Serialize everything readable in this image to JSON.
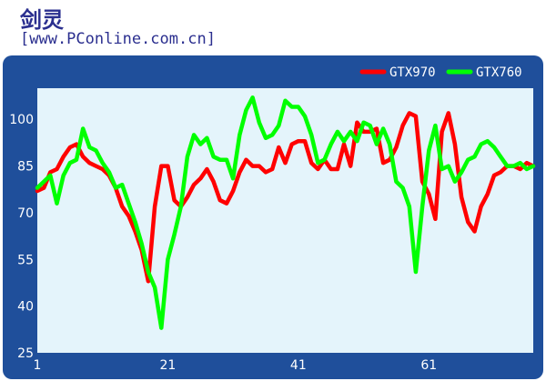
{
  "header": {
    "title": "剑灵",
    "source": "[www.PConline.com.cn]"
  },
  "chart_data": {
    "type": "line",
    "title": "",
    "xlabel": "",
    "ylabel": "",
    "xlim": [
      1,
      77
    ],
    "ylim": [
      25,
      110
    ],
    "yticks": [
      25,
      40,
      55,
      70,
      85,
      100
    ],
    "xticks": [
      1,
      21,
      41,
      61
    ],
    "grid": false,
    "legend": "top-right",
    "series": [
      {
        "name": "GTX970",
        "color": "#ff0000",
        "x": [
          1,
          2,
          3,
          4,
          5,
          6,
          7,
          8,
          9,
          10,
          11,
          12,
          13,
          14,
          15,
          16,
          17,
          18,
          19,
          20,
          21,
          22,
          23,
          24,
          25,
          26,
          27,
          28,
          29,
          30,
          31,
          32,
          33,
          34,
          35,
          36,
          37,
          38,
          39,
          40,
          41,
          42,
          43,
          44,
          45,
          46,
          47,
          48,
          49,
          50,
          51,
          52,
          53,
          54,
          55,
          56,
          57,
          58,
          59,
          60,
          61,
          62,
          63,
          64,
          65,
          66,
          67,
          68,
          69,
          70,
          71,
          72,
          73,
          74,
          75,
          76,
          77
        ],
        "values": [
          77,
          78,
          83,
          84,
          88,
          91,
          92,
          88,
          86,
          85,
          84,
          82,
          78,
          72,
          69,
          64,
          58,
          48,
          72,
          85,
          85,
          74,
          72,
          75,
          79,
          81,
          84,
          80,
          74,
          73,
          77,
          83,
          87,
          85,
          85,
          83,
          84,
          91,
          86,
          92,
          93,
          93,
          86,
          84,
          87,
          84,
          84,
          92,
          85,
          99,
          96,
          96,
          97,
          86,
          87,
          91,
          98,
          102,
          101,
          80,
          76,
          68,
          96,
          102,
          92,
          75,
          67,
          64,
          72,
          76,
          82,
          83,
          85,
          85,
          84,
          86,
          85
        ]
      },
      {
        "name": "GTX760",
        "color": "#00ff00",
        "x": [
          1,
          2,
          3,
          4,
          5,
          6,
          7,
          8,
          9,
          10,
          11,
          12,
          13,
          14,
          15,
          16,
          17,
          18,
          19,
          20,
          21,
          22,
          23,
          24,
          25,
          26,
          27,
          28,
          29,
          30,
          31,
          32,
          33,
          34,
          35,
          36,
          37,
          38,
          39,
          40,
          41,
          42,
          43,
          44,
          45,
          46,
          47,
          48,
          49,
          50,
          51,
          52,
          53,
          54,
          55,
          56,
          57,
          58,
          59,
          60,
          61,
          62,
          63,
          64,
          65,
          66,
          67,
          68,
          69,
          70,
          71,
          72,
          73,
          74,
          75,
          76,
          77
        ],
        "values": [
          78,
          80,
          82,
          73,
          82,
          86,
          87,
          97,
          91,
          90,
          86,
          83,
          78,
          79,
          73,
          67,
          60,
          51,
          46,
          33,
          55,
          63,
          72,
          88,
          95,
          92,
          94,
          88,
          87,
          87,
          81,
          95,
          103,
          107,
          99,
          94,
          95,
          98,
          106,
          104,
          104,
          101,
          95,
          86,
          87,
          92,
          96,
          93,
          96,
          93,
          99,
          98,
          92,
          97,
          92,
          80,
          78,
          72,
          51,
          72,
          90,
          98,
          84,
          85,
          80,
          83,
          87,
          88,
          92,
          93,
          91,
          88,
          85,
          85,
          86,
          84,
          85
        ]
      }
    ]
  }
}
